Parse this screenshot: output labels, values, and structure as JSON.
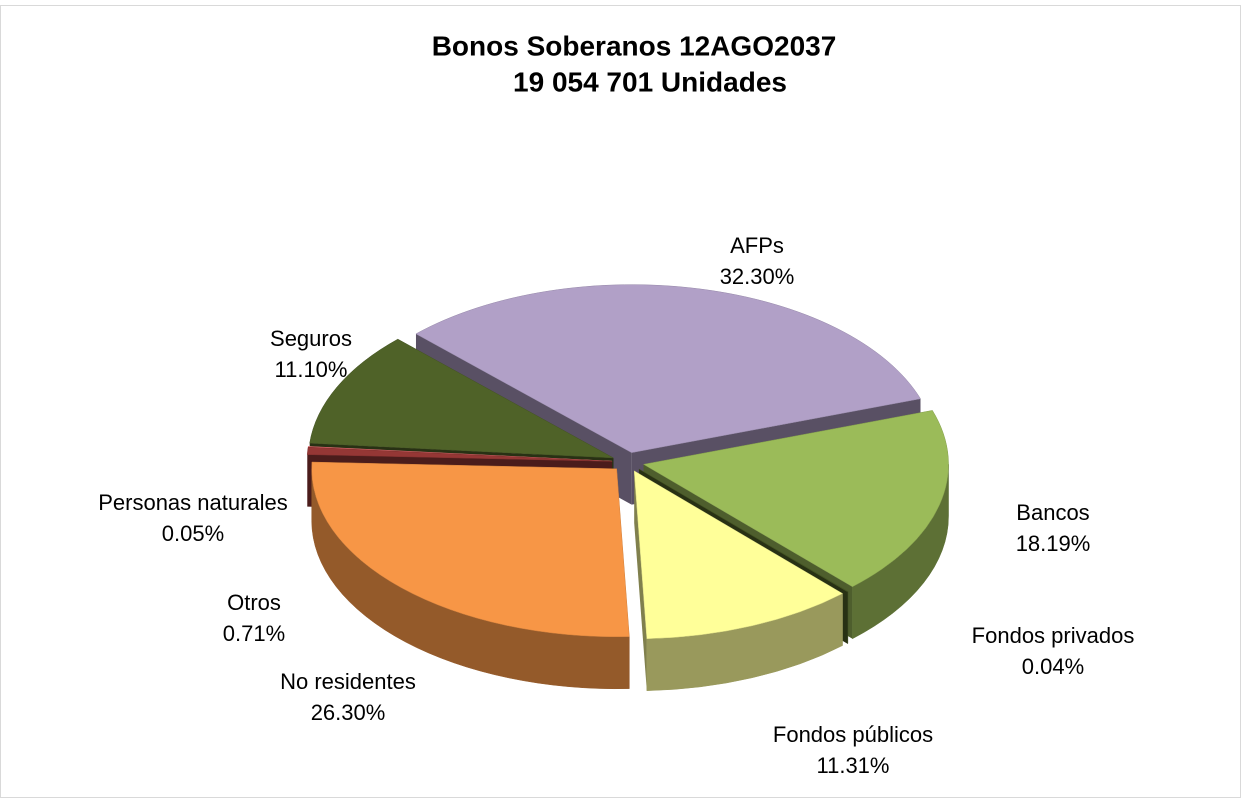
{
  "chart_data": {
    "type": "pie3d",
    "title": "Bonos Soberanos 12AGO2037",
    "subtitle": "19 054 701 Unidades",
    "categories": [
      "AFPs",
      "Bancos",
      "Fondos privados",
      "Fondos públicos",
      "No residentes",
      "Otros",
      "Personas naturales",
      "Seguros"
    ],
    "values": [
      32.3,
      18.19,
      0.04,
      11.31,
      26.3,
      0.71,
      0.05,
      11.1
    ],
    "value_labels": [
      "32.30%",
      "18.19%",
      "0.04%",
      "11.31%",
      "26.30%",
      "0.71%",
      "0.05%",
      "11.10%"
    ],
    "colors": [
      "#b1a0c7",
      "#9bbb59",
      "#4f6228",
      "#ffff99",
      "#f79646",
      "#953735",
      "#ff7c80",
      "#4f6228"
    ]
  }
}
